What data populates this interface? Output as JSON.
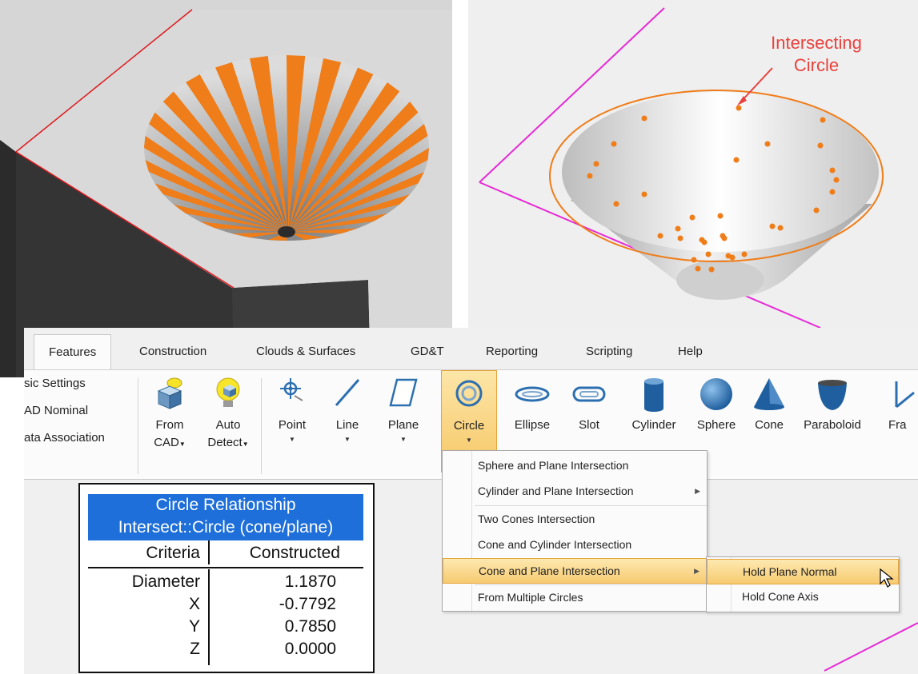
{
  "annotation": {
    "text_line1": "Intersecting",
    "text_line2": "Circle",
    "color": "#e8423d"
  },
  "tabs": [
    {
      "label": "Features",
      "active": true
    },
    {
      "label": "Construction"
    },
    {
      "label": "Clouds & Surfaces"
    },
    {
      "label": "GD&T"
    },
    {
      "label": "Reporting"
    },
    {
      "label": "Scripting"
    },
    {
      "label": "Help"
    }
  ],
  "settings_panel": [
    "sic Settings",
    "AD Nominal",
    "ata Association"
  ],
  "tools": {
    "from_cad": {
      "line1": "From",
      "line2": "CAD"
    },
    "auto_detect": {
      "line1": "Auto",
      "line2": "Detect"
    },
    "point": "Point",
    "line": "Line",
    "plane": "Plane",
    "circle": "Circle",
    "ellipse": "Ellipse",
    "slot": "Slot",
    "cylinder": "Cylinder",
    "sphere": "Sphere",
    "cone": "Cone",
    "paraboloid": "Paraboloid",
    "frame": "Fra"
  },
  "circle_menu": [
    "Sphere and Plane Intersection",
    "Cylinder and Plane Intersection",
    "Two Cones Intersection",
    "Cone and Cylinder Intersection",
    "Cone and Plane Intersection",
    "From Multiple Circles"
  ],
  "cone_plane_submenu": [
    "Hold Plane Normal",
    "Hold Cone Axis"
  ],
  "relationship": {
    "title": "Circle Relationship",
    "subtitle": "Intersect::Circle (cone/plane)",
    "col_criteria": "Criteria",
    "col_constructed": "Constructed",
    "rows": [
      {
        "name": "Diameter",
        "value": "1.1870"
      },
      {
        "name": "X",
        "value": "-0.7792"
      },
      {
        "name": "Y",
        "value": "0.7850"
      },
      {
        "name": "Z",
        "value": "0.0000"
      }
    ]
  },
  "colors": {
    "accent_orange": "#ef7d1a",
    "plane_magenta": "#e62ad6",
    "header_blue": "#1e6fd9"
  }
}
